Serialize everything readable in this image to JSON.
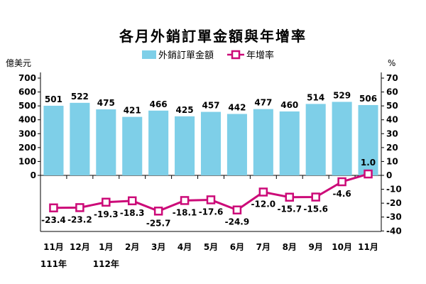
{
  "chart_data": {
    "type": "bar",
    "title": "各月外銷訂單金額與年增率",
    "categories": [
      "11月",
      "12月",
      "1月",
      "2月",
      "3月",
      "4月",
      "5月",
      "6月",
      "7月",
      "8月",
      "9月",
      "10月",
      "11月"
    ],
    "year_labels": [
      "111年",
      "",
      "112年",
      "",
      "",
      "",
      "",
      "",
      "",
      "",
      "",
      "",
      ""
    ],
    "left_unit": "億美元",
    "right_unit": "%",
    "left_ticks": [
      "700",
      "600",
      "500",
      "400",
      "300",
      "200",
      "100",
      "0"
    ],
    "right_ticks": [
      "70",
      "60",
      "50",
      "40",
      "30",
      "20",
      "10",
      "0",
      "-10",
      "-20",
      "-30",
      "-40"
    ],
    "left_range": [
      0,
      700
    ],
    "right_range": [
      -40,
      70
    ],
    "legend_position": "top-center",
    "series": [
      {
        "name": "外銷訂單金額",
        "type": "bar",
        "axis": "left",
        "color": "#7ecfe8",
        "values": [
          501,
          522,
          475,
          421,
          466,
          425,
          457,
          442,
          477,
          460,
          514,
          529,
          506
        ],
        "labels": [
          "501",
          "522",
          "475",
          "421",
          "466",
          "425",
          "457",
          "442",
          "477",
          "460",
          "514",
          "529",
          "506"
        ]
      },
      {
        "name": "年增率",
        "type": "line",
        "axis": "right",
        "color": "#cc0a78",
        "values": [
          -23.4,
          -23.2,
          -19.3,
          -18.3,
          -25.7,
          -18.1,
          -17.6,
          -24.9,
          -12.0,
          -15.7,
          -15.6,
          -4.6,
          1.0
        ],
        "labels": [
          "-23.4",
          "-23.2",
          "-19.3",
          "-18.3",
          "-25.7",
          "-18.1",
          "-17.6",
          "-24.9",
          "-12.0",
          "-15.7",
          "-15.6",
          "-4.6",
          "1.0"
        ]
      }
    ]
  }
}
